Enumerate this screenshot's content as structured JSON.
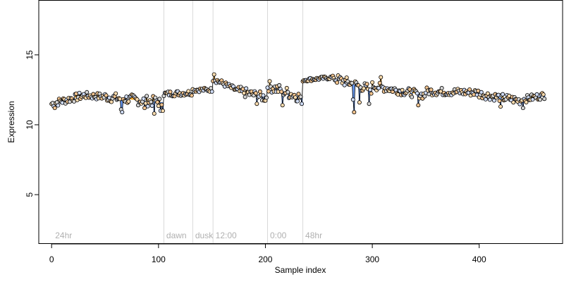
{
  "chart_data": {
    "type": "scatter",
    "title": "",
    "xlabel": "Sample index",
    "ylabel": "Expression",
    "xlim": [
      -12,
      478
    ],
    "ylim": [
      1.5,
      18.9
    ],
    "x_ticks": [
      0,
      100,
      200,
      300,
      400
    ],
    "y_ticks": [
      5,
      10,
      15
    ],
    "grid": false,
    "legend": "none",
    "colors": {
      "frame": "#000000",
      "divider": "#d9d9d9",
      "region_label": "#b0b0b0",
      "up_bar": "#f5a623",
      "down_bar": "#6495ed",
      "trend": "#000000",
      "points": [
        "#fcdcae",
        "#d4d4d4",
        "#cfdcf7",
        "#f3c48f"
      ]
    },
    "regions": [
      {
        "label": "24hr",
        "x": 2
      },
      {
        "label": "dawn",
        "x": 106
      },
      {
        "label": "dusk",
        "x": 133
      },
      {
        "label": "12:00",
        "x": 152
      },
      {
        "label": "0:00",
        "x": 203
      },
      {
        "label": "48hr",
        "x": 236
      }
    ],
    "dividers": [
      105,
      132,
      151,
      202,
      235
    ],
    "segments": [
      {
        "x0": 0,
        "x1": 30,
        "y0": 11.5,
        "y1": 12.1,
        "amp": 0.28
      },
      {
        "x0": 30,
        "x1": 50,
        "y0": 12.1,
        "y1": 12.0,
        "amp": 0.25
      },
      {
        "x0": 50,
        "x1": 75,
        "y0": 12.0,
        "y1": 11.8,
        "amp": 0.35
      },
      {
        "x0": 75,
        "x1": 105,
        "y0": 11.8,
        "y1": 11.6,
        "amp": 0.38
      },
      {
        "x0": 105,
        "x1": 132,
        "y0": 12.2,
        "y1": 12.3,
        "amp": 0.2
      },
      {
        "x0": 132,
        "x1": 151,
        "y0": 12.5,
        "y1": 12.5,
        "amp": 0.15
      },
      {
        "x0": 151,
        "x1": 175,
        "y0": 13.3,
        "y1": 12.4,
        "amp": 0.2
      },
      {
        "x0": 175,
        "x1": 202,
        "y0": 12.4,
        "y1": 11.9,
        "amp": 0.35
      },
      {
        "x0": 202,
        "x1": 235,
        "y0": 12.8,
        "y1": 11.9,
        "amp": 0.4
      },
      {
        "x0": 235,
        "x1": 265,
        "y0": 13.2,
        "y1": 13.4,
        "amp": 0.12
      },
      {
        "x0": 265,
        "x1": 300,
        "y0": 13.3,
        "y1": 12.5,
        "amp": 0.35
      },
      {
        "x0": 300,
        "x1": 350,
        "y0": 12.8,
        "y1": 12.1,
        "amp": 0.3
      },
      {
        "x0": 350,
        "x1": 400,
        "y0": 12.4,
        "y1": 12.3,
        "amp": 0.28
      },
      {
        "x0": 400,
        "x1": 440,
        "y0": 12.2,
        "y1": 11.7,
        "amp": 0.3
      },
      {
        "x0": 440,
        "x1": 461,
        "y0": 11.8,
        "y1": 12.1,
        "amp": 0.25
      }
    ],
    "outliers": [
      {
        "x": 3,
        "y": 11.2
      },
      {
        "x": 65,
        "y": 11.1
      },
      {
        "x": 66,
        "y": 10.9
      },
      {
        "x": 87,
        "y": 11.2
      },
      {
        "x": 96,
        "y": 10.8
      },
      {
        "x": 102,
        "y": 11.0
      },
      {
        "x": 104,
        "y": 11.0
      },
      {
        "x": 152,
        "y": 13.6
      },
      {
        "x": 192,
        "y": 11.5
      },
      {
        "x": 216,
        "y": 11.4
      },
      {
        "x": 234,
        "y": 11.5
      },
      {
        "x": 282,
        "y": 11.8
      },
      {
        "x": 283,
        "y": 10.9
      },
      {
        "x": 288,
        "y": 11.6
      },
      {
        "x": 297,
        "y": 11.5
      },
      {
        "x": 308,
        "y": 13.4
      },
      {
        "x": 343,
        "y": 11.4
      },
      {
        "x": 420,
        "y": 11.3
      },
      {
        "x": 441,
        "y": 11.2
      }
    ],
    "n_samples": 462
  }
}
